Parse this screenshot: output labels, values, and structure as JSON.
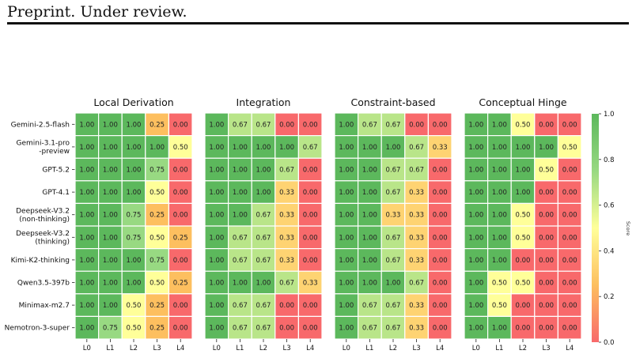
{
  "header": {
    "text": "Preprint. Under review."
  },
  "chart_data": {
    "type": "heatmap",
    "rows": [
      "Gemini-2.5-flash",
      "Gemini-3.1-pro\n-preview",
      "GPT-5.2",
      "GPT-4.1",
      "Deepseek-V3.2\n(non-thinking)",
      "Deepseek-V3.2\n(thinking)",
      "Kimi-K2-thinking",
      "Qwen3.5-397b",
      "Minimax-m2.7",
      "Nemotron-3-super"
    ],
    "columns": [
      "L0",
      "L1",
      "L2",
      "L3",
      "L4"
    ],
    "panels": [
      {
        "title": "Local Derivation",
        "values": [
          [
            1.0,
            1.0,
            1.0,
            0.25,
            0.0
          ],
          [
            1.0,
            1.0,
            1.0,
            1.0,
            0.5
          ],
          [
            1.0,
            1.0,
            1.0,
            0.75,
            0.0
          ],
          [
            1.0,
            1.0,
            1.0,
            0.5,
            0.0
          ],
          [
            1.0,
            1.0,
            0.75,
            0.25,
            0.0
          ],
          [
            1.0,
            1.0,
            0.75,
            0.5,
            0.25
          ],
          [
            1.0,
            1.0,
            1.0,
            0.75,
            0.0
          ],
          [
            1.0,
            1.0,
            1.0,
            0.5,
            0.25
          ],
          [
            1.0,
            1.0,
            0.5,
            0.25,
            0.0
          ],
          [
            1.0,
            0.75,
            0.5,
            0.25,
            0.0
          ]
        ]
      },
      {
        "title": "Integration",
        "values": [
          [
            1.0,
            0.67,
            0.67,
            0.0,
            0.0
          ],
          [
            1.0,
            1.0,
            1.0,
            1.0,
            0.67
          ],
          [
            1.0,
            1.0,
            1.0,
            0.67,
            0.0
          ],
          [
            1.0,
            1.0,
            1.0,
            0.33,
            0.0
          ],
          [
            1.0,
            1.0,
            0.67,
            0.33,
            0.0
          ],
          [
            1.0,
            0.67,
            0.67,
            0.33,
            0.0
          ],
          [
            1.0,
            0.67,
            0.67,
            0.33,
            0.0
          ],
          [
            1.0,
            1.0,
            1.0,
            0.67,
            0.33
          ],
          [
            1.0,
            0.67,
            0.67,
            0.0,
            0.0
          ],
          [
            1.0,
            0.67,
            0.67,
            0.0,
            0.0
          ]
        ]
      },
      {
        "title": "Constraint-based",
        "values": [
          [
            1.0,
            0.67,
            0.67,
            0.0,
            0.0
          ],
          [
            1.0,
            1.0,
            1.0,
            0.67,
            0.33
          ],
          [
            1.0,
            1.0,
            0.67,
            0.67,
            0.0
          ],
          [
            1.0,
            1.0,
            0.67,
            0.33,
            0.0
          ],
          [
            1.0,
            1.0,
            0.33,
            0.33,
            0.0
          ],
          [
            1.0,
            1.0,
            0.67,
            0.33,
            0.0
          ],
          [
            1.0,
            1.0,
            0.67,
            0.33,
            0.0
          ],
          [
            1.0,
            1.0,
            1.0,
            0.67,
            0.0
          ],
          [
            1.0,
            0.67,
            0.67,
            0.33,
            0.0
          ],
          [
            1.0,
            0.67,
            0.67,
            0.33,
            0.0
          ]
        ]
      },
      {
        "title": "Conceptual Hinge",
        "values": [
          [
            1.0,
            1.0,
            0.5,
            0.0,
            0.0
          ],
          [
            1.0,
            1.0,
            1.0,
            1.0,
            0.5
          ],
          [
            1.0,
            1.0,
            1.0,
            0.5,
            0.0
          ],
          [
            1.0,
            1.0,
            1.0,
            0.0,
            0.0
          ],
          [
            1.0,
            1.0,
            0.5,
            0.0,
            0.0
          ],
          [
            1.0,
            1.0,
            0.5,
            0.0,
            0.0
          ],
          [
            1.0,
            1.0,
            0.0,
            0.0,
            0.0
          ],
          [
            1.0,
            0.5,
            0.5,
            0.0,
            0.0
          ],
          [
            1.0,
            0.5,
            0.0,
            0.0,
            0.0
          ],
          [
            1.0,
            1.0,
            0.0,
            0.0,
            0.0
          ]
        ]
      }
    ],
    "colorbar": {
      "label": "Score",
      "range": [
        0.0,
        1.0
      ],
      "ticks": [
        "0.0",
        "0.2",
        "0.4",
        "0.6",
        "0.8",
        "1.0"
      ],
      "colors": [
        "#f8696b",
        "#fdbf5f",
        "#ffff99",
        "#98d982",
        "#5cb85c"
      ]
    },
    "value_format": "2 decimals"
  }
}
